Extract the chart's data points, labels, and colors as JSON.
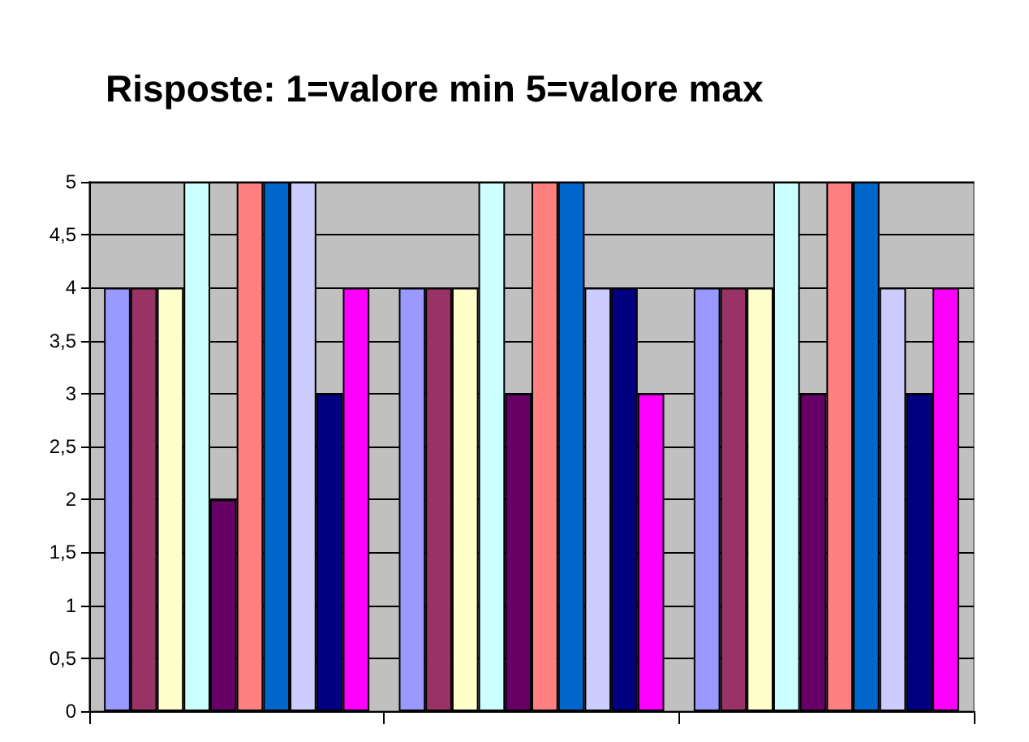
{
  "chart_data": {
    "type": "bar",
    "title": "Risposte: 1=valore min 5=valore max",
    "categories": [
      null,
      null,
      null
    ],
    "series": [
      {
        "color": "#9999ff",
        "values": [
          4,
          4,
          4
        ]
      },
      {
        "color": "#993366",
        "values": [
          4,
          4,
          4
        ]
      },
      {
        "color": "#ffffcc",
        "values": [
          4,
          4,
          4
        ]
      },
      {
        "color": "#ccffff",
        "values": [
          5,
          5,
          5
        ]
      },
      {
        "color": "#660066",
        "values": [
          2,
          3,
          3
        ]
      },
      {
        "color": "#ff8080",
        "values": [
          5,
          5,
          5
        ]
      },
      {
        "color": "#0066cc",
        "values": [
          5,
          5,
          5
        ]
      },
      {
        "color": "#ccccff",
        "values": [
          5,
          4,
          4
        ]
      },
      {
        "color": "#000080",
        "values": [
          3,
          4,
          3
        ]
      },
      {
        "color": "#ff00ff",
        "values": [
          4,
          3,
          4
        ]
      }
    ],
    "ylim": [
      0,
      5
    ],
    "yticks": [
      0,
      {
        "value": 0.5,
        "label": "0,5"
      },
      1,
      {
        "value": 1.5,
        "label": "1,5"
      },
      2,
      {
        "value": 2.5,
        "label": "2,5"
      },
      3,
      {
        "value": 3.5,
        "label": "3,5"
      },
      4,
      {
        "value": 4.5,
        "label": "4,5"
      },
      5
    ],
    "grid": "y"
  }
}
